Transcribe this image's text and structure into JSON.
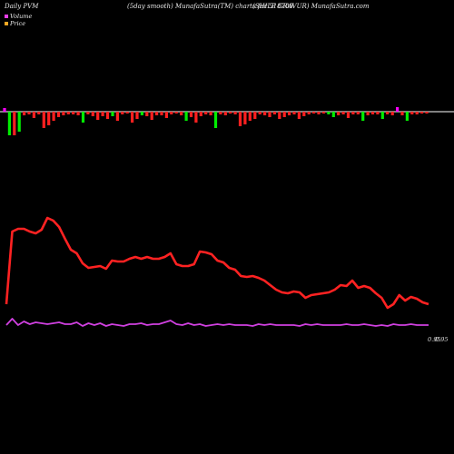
{
  "header": {
    "left": "Daily PVM",
    "middle": "(5day smooth) MunafaSutra(TM) charts for 518709",
    "right": "(SHILP GRAVUR) MunafaSutra.com"
  },
  "legend": {
    "volume_label": "Volume",
    "price_label": "Price",
    "volume_color": "#e83fe8",
    "price_color": "#f5a623"
  },
  "chart_data": {
    "type": "line",
    "title": "",
    "price_series": [
      40,
      120,
      123,
      123,
      120,
      118,
      122,
      135,
      132,
      125,
      112,
      100,
      96,
      85,
      80,
      81,
      82,
      79,
      88,
      87,
      87,
      90,
      92,
      90,
      92,
      90,
      90,
      92,
      96,
      84,
      82,
      82,
      84,
      98,
      97,
      95,
      88,
      86,
      80,
      78,
      71,
      70,
      71,
      69,
      66,
      61,
      56,
      53,
      52,
      54,
      53,
      47,
      50,
      51,
      52,
      53,
      56,
      61,
      60,
      66,
      58,
      60,
      58,
      52,
      47,
      36,
      40,
      50,
      44,
      48,
      46,
      42,
      40
    ],
    "volume_series": [
      17,
      24,
      17,
      21,
      18,
      20,
      19,
      18,
      19,
      20,
      18,
      18,
      20,
      16,
      19,
      17,
      19,
      16,
      18,
      17,
      16,
      18,
      18,
      19,
      17,
      18,
      18,
      20,
      22,
      18,
      17,
      19,
      17,
      18,
      16,
      17,
      18,
      17,
      18,
      17,
      17,
      17,
      16,
      18,
      17,
      18,
      17,
      17,
      17,
      17,
      16,
      18,
      17,
      18,
      17,
      17,
      17,
      17,
      18,
      17,
      17,
      18,
      17,
      16,
      17,
      16,
      18,
      17,
      17,
      18,
      17,
      17,
      17
    ],
    "volume_bars": [
      {
        "v": 4,
        "c": "#ff00ff"
      },
      {
        "v": -26,
        "c": "#00ee00"
      },
      {
        "v": -26,
        "c": "#ff2020"
      },
      {
        "v": -22,
        "c": "#00ee00"
      },
      {
        "v": -4,
        "c": "#ff2020"
      },
      {
        "v": -3,
        "c": "#ff2020"
      },
      {
        "v": -7,
        "c": "#ff2020"
      },
      {
        "v": -3,
        "c": "#ff2020"
      },
      {
        "v": -18,
        "c": "#ff2020"
      },
      {
        "v": -15,
        "c": "#ff2020"
      },
      {
        "v": -10,
        "c": "#ff2020"
      },
      {
        "v": -6,
        "c": "#ff2020"
      },
      {
        "v": -4,
        "c": "#ff2020"
      },
      {
        "v": -3,
        "c": "#ff2020"
      },
      {
        "v": -3,
        "c": "#ff2020"
      },
      {
        "v": -4,
        "c": "#ff2020"
      },
      {
        "v": -12,
        "c": "#00ee00"
      },
      {
        "v": -3,
        "c": "#ff2020"
      },
      {
        "v": -5,
        "c": "#ff2020"
      },
      {
        "v": -9,
        "c": "#ff2020"
      },
      {
        "v": -5,
        "c": "#ff2020"
      },
      {
        "v": -8,
        "c": "#ff2020"
      },
      {
        "v": -5,
        "c": "#00ee00"
      },
      {
        "v": -10,
        "c": "#ff2020"
      },
      {
        "v": -3,
        "c": "#ff2020"
      },
      {
        "v": -2,
        "c": "#ff2020"
      },
      {
        "v": -12,
        "c": "#ff2020"
      },
      {
        "v": -8,
        "c": "#ff2020"
      },
      {
        "v": -4,
        "c": "#00ee00"
      },
      {
        "v": -5,
        "c": "#ff2020"
      },
      {
        "v": -9,
        "c": "#ff2020"
      },
      {
        "v": -4,
        "c": "#ff2020"
      },
      {
        "v": -4,
        "c": "#ff2020"
      },
      {
        "v": -7,
        "c": "#ff2020"
      },
      {
        "v": -3,
        "c": "#ff2020"
      },
      {
        "v": -2,
        "c": "#ff2020"
      },
      {
        "v": -4,
        "c": "#ff2020"
      },
      {
        "v": -10,
        "c": "#00ee00"
      },
      {
        "v": -6,
        "c": "#ff2020"
      },
      {
        "v": -12,
        "c": "#ff2020"
      },
      {
        "v": -5,
        "c": "#ff2020"
      },
      {
        "v": -3,
        "c": "#ff2020"
      },
      {
        "v": -4,
        "c": "#ff2020"
      },
      {
        "v": -18,
        "c": "#00ee00"
      },
      {
        "v": -3,
        "c": "#ff2020"
      },
      {
        "v": -4,
        "c": "#ff2020"
      },
      {
        "v": -2,
        "c": "#ff2020"
      },
      {
        "v": -3,
        "c": "#ff2020"
      },
      {
        "v": -16,
        "c": "#ff2020"
      },
      {
        "v": -14,
        "c": "#ff2020"
      },
      {
        "v": -10,
        "c": "#ff2020"
      },
      {
        "v": -8,
        "c": "#ff2020"
      },
      {
        "v": -3,
        "c": "#ff2020"
      },
      {
        "v": -4,
        "c": "#ff2020"
      },
      {
        "v": -6,
        "c": "#ff2020"
      },
      {
        "v": -3,
        "c": "#ff2020"
      },
      {
        "v": -8,
        "c": "#ff2020"
      },
      {
        "v": -6,
        "c": "#ff2020"
      },
      {
        "v": -4,
        "c": "#ff2020"
      },
      {
        "v": -3,
        "c": "#ff2020"
      },
      {
        "v": -8,
        "c": "#ff2020"
      },
      {
        "v": -5,
        "c": "#ff2020"
      },
      {
        "v": -3,
        "c": "#ff2020"
      },
      {
        "v": -2,
        "c": "#ff2020"
      },
      {
        "v": -3,
        "c": "#ff2020"
      },
      {
        "v": -2,
        "c": "#ff2020"
      },
      {
        "v": -3,
        "c": "#00ee00"
      },
      {
        "v": -6,
        "c": "#00ee00"
      },
      {
        "v": -4,
        "c": "#ff2020"
      },
      {
        "v": -3,
        "c": "#ff2020"
      },
      {
        "v": -7,
        "c": "#ff2020"
      },
      {
        "v": -3,
        "c": "#ff2020"
      },
      {
        "v": -3,
        "c": "#ff2020"
      },
      {
        "v": -10,
        "c": "#00ee00"
      },
      {
        "v": -4,
        "c": "#ff2020"
      },
      {
        "v": -3,
        "c": "#ff2020"
      },
      {
        "v": -3,
        "c": "#ff2020"
      },
      {
        "v": -8,
        "c": "#00ee00"
      },
      {
        "v": -3,
        "c": "#ff2020"
      },
      {
        "v": -4,
        "c": "#ff2020"
      },
      {
        "v": 5,
        "c": "#ff00ff"
      },
      {
        "v": -4,
        "c": "#ff2020"
      },
      {
        "v": -10,
        "c": "#00ee00"
      },
      {
        "v": -3,
        "c": "#ff2020"
      },
      {
        "v": -3,
        "c": "#ff2020"
      },
      {
        "v": -2,
        "c": "#ff2020"
      },
      {
        "v": -2,
        "c": "#ff2020"
      }
    ],
    "end_labels": [
      "0.95",
      "0.95"
    ],
    "grid": false,
    "legend_position": "top-left"
  }
}
